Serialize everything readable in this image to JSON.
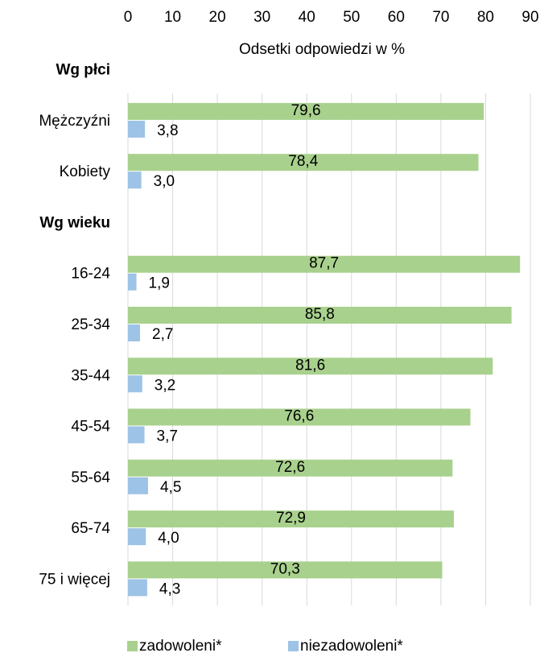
{
  "chart_data": {
    "type": "barh",
    "xlabel": "Odsetki odpowiedzi w %",
    "categories": [
      "Wg płci",
      "Mężczyźni",
      "Kobiety",
      "Wg wieku",
      "16-24",
      "25-34",
      "35-44",
      "45-54",
      "55-64",
      "65-74",
      "75 i więcej"
    ],
    "series": [
      {
        "name": "zadowoleni*",
        "color": "#a9d18e",
        "values": [
          null,
          79.6,
          78.4,
          null,
          87.7,
          85.8,
          81.6,
          76.6,
          72.6,
          72.9,
          70.3
        ],
        "value_labels": [
          null,
          "79,6",
          "78,4",
          null,
          "87,7",
          "85,8",
          "81,6",
          "76,6",
          "72,6",
          "72,9",
          "70,3"
        ]
      },
      {
        "name": "niezadowoleni*",
        "color": "#9dc3e6",
        "values": [
          null,
          3.8,
          3.0,
          null,
          1.9,
          2.7,
          3.2,
          3.7,
          4.5,
          4.0,
          4.3
        ],
        "value_labels": [
          null,
          "3,8",
          "3,0",
          null,
          "1,9",
          "2,7",
          "3,2",
          "3,7",
          "4,5",
          "4,0",
          "4,3"
        ]
      }
    ],
    "xlim": [
      0,
      90
    ],
    "xticks": [
      0,
      10,
      20,
      30,
      40,
      50,
      60,
      70,
      80,
      90
    ],
    "grid": true,
    "legend": "bottom"
  }
}
